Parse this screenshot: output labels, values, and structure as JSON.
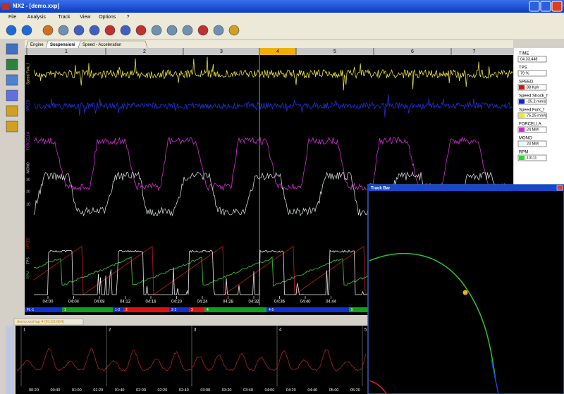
{
  "window": {
    "title": "MX2 - [demo.xxp]"
  },
  "menu": [
    "File",
    "Analysis",
    "Track",
    "View",
    "Options",
    "?"
  ],
  "tabs": [
    "Engine",
    "Sospensioni",
    "Speed - Acceleration"
  ],
  "laps": [
    "1",
    "2",
    "3",
    "4",
    "5",
    "6",
    "7"
  ],
  "channel_labels": [
    "Speed Fork_f",
    "SPEED",
    "FORCELLA",
    "MONO",
    "30",
    "20",
    "10",
    "SPEED",
    "TPS",
    "RPM"
  ],
  "time_axis": [
    "04:00",
    "04:04",
    "04:08",
    "04:12",
    "04:16",
    "04:20",
    "04:24",
    "04:28",
    "04:32",
    "04:36",
    "04:40",
    "04:44"
  ],
  "segments": [
    {
      "label": "FL-1",
      "color": "#1030d0"
    },
    {
      "label": "1",
      "color": "#10a020"
    },
    {
      "label": "1-2",
      "color": "#1030d0"
    },
    {
      "label": "2",
      "color": "#e01010"
    },
    {
      "label": "2-3",
      "color": "#1030d0"
    },
    {
      "label": "3",
      "color": "#e01010"
    },
    {
      "label": "4",
      "color": "#10a020"
    },
    {
      "label": "4-5",
      "color": "#1030d0"
    },
    {
      "label": "5",
      "color": "#10a020"
    }
  ],
  "readouts": [
    {
      "name": "TIME",
      "value": "04:33.448",
      "color": null
    },
    {
      "name": "TPS",
      "value": "79 %",
      "color": null
    },
    {
      "name": "SPEED",
      "value": "88 Kph",
      "color": "#e01010"
    },
    {
      "name": "Speed Shock_f",
      "value": "-25.2 mm/s",
      "color": "#1020e0"
    },
    {
      "name": "Speed Fork_f",
      "value": "75.25 mm/s",
      "color": "#f0f000"
    },
    {
      "name": "FORCELLA",
      "value": "24 MM",
      "color": "#e020e0"
    },
    {
      "name": "MONO",
      "value": "23 MM",
      "color": "#e0ffff"
    },
    {
      "name": "RPM",
      "value": "10111",
      "color": "#20e020"
    }
  ],
  "track_bar": {
    "title": "Track Bar"
  },
  "bottom": {
    "tab": "demo.xxd lap 4 (01:10.664)",
    "laps": [
      "1",
      "2",
      "3",
      "4",
      "5"
    ],
    "time_axis": [
      "00:20",
      "00:40",
      "01:00",
      "01:20",
      "01:40",
      "02:00",
      "02:20",
      "02:40",
      "03:00",
      "03:20",
      "03:40",
      "04:00",
      "04:20",
      "04:40",
      "05:00",
      "05:20"
    ]
  }
}
